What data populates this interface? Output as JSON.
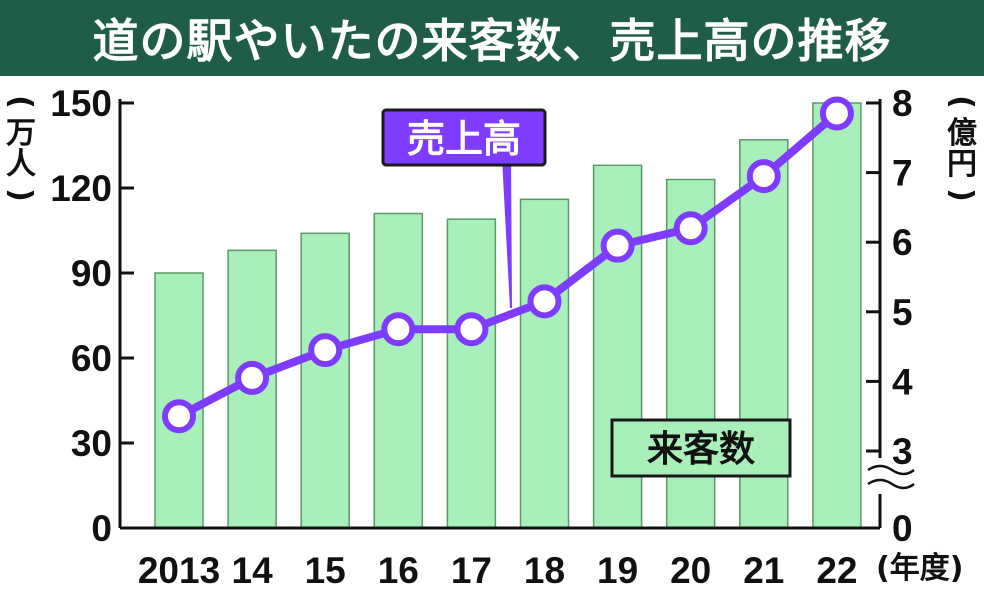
{
  "title": "道の駅やいたの来客数、売上高の推移",
  "chart_data": {
    "type": "bar",
    "categories": [
      "2013",
      "14",
      "15",
      "16",
      "17",
      "18",
      "19",
      "20",
      "21",
      "22"
    ],
    "x_suffix": "(年度)",
    "series": [
      {
        "name": "来客数",
        "type": "bar",
        "axis": "left",
        "values": [
          90,
          98,
          104,
          111,
          109,
          116,
          128,
          123,
          137,
          150
        ]
      },
      {
        "name": "売上高",
        "type": "line",
        "axis": "right",
        "values": [
          3.5,
          4.05,
          4.45,
          4.75,
          4.75,
          5.15,
          5.95,
          6.2,
          6.95,
          7.85
        ]
      }
    ],
    "left_axis": {
      "unit": "(万人)",
      "min": 0,
      "max": 150,
      "ticks": [
        0,
        30,
        60,
        90,
        120,
        150
      ]
    },
    "right_axis": {
      "unit": "(億円)",
      "min": 0,
      "max": 8,
      "ticks": [
        0,
        3,
        4,
        5,
        6,
        7,
        8
      ],
      "axis_break": "between 0 and 3"
    },
    "colors": {
      "bar": "#a8efb9",
      "bar_edge": "#5a9a6a",
      "line": "#7d3cff",
      "marker_fill": "#ffffff",
      "title_bg": "#1f5d49"
    }
  }
}
